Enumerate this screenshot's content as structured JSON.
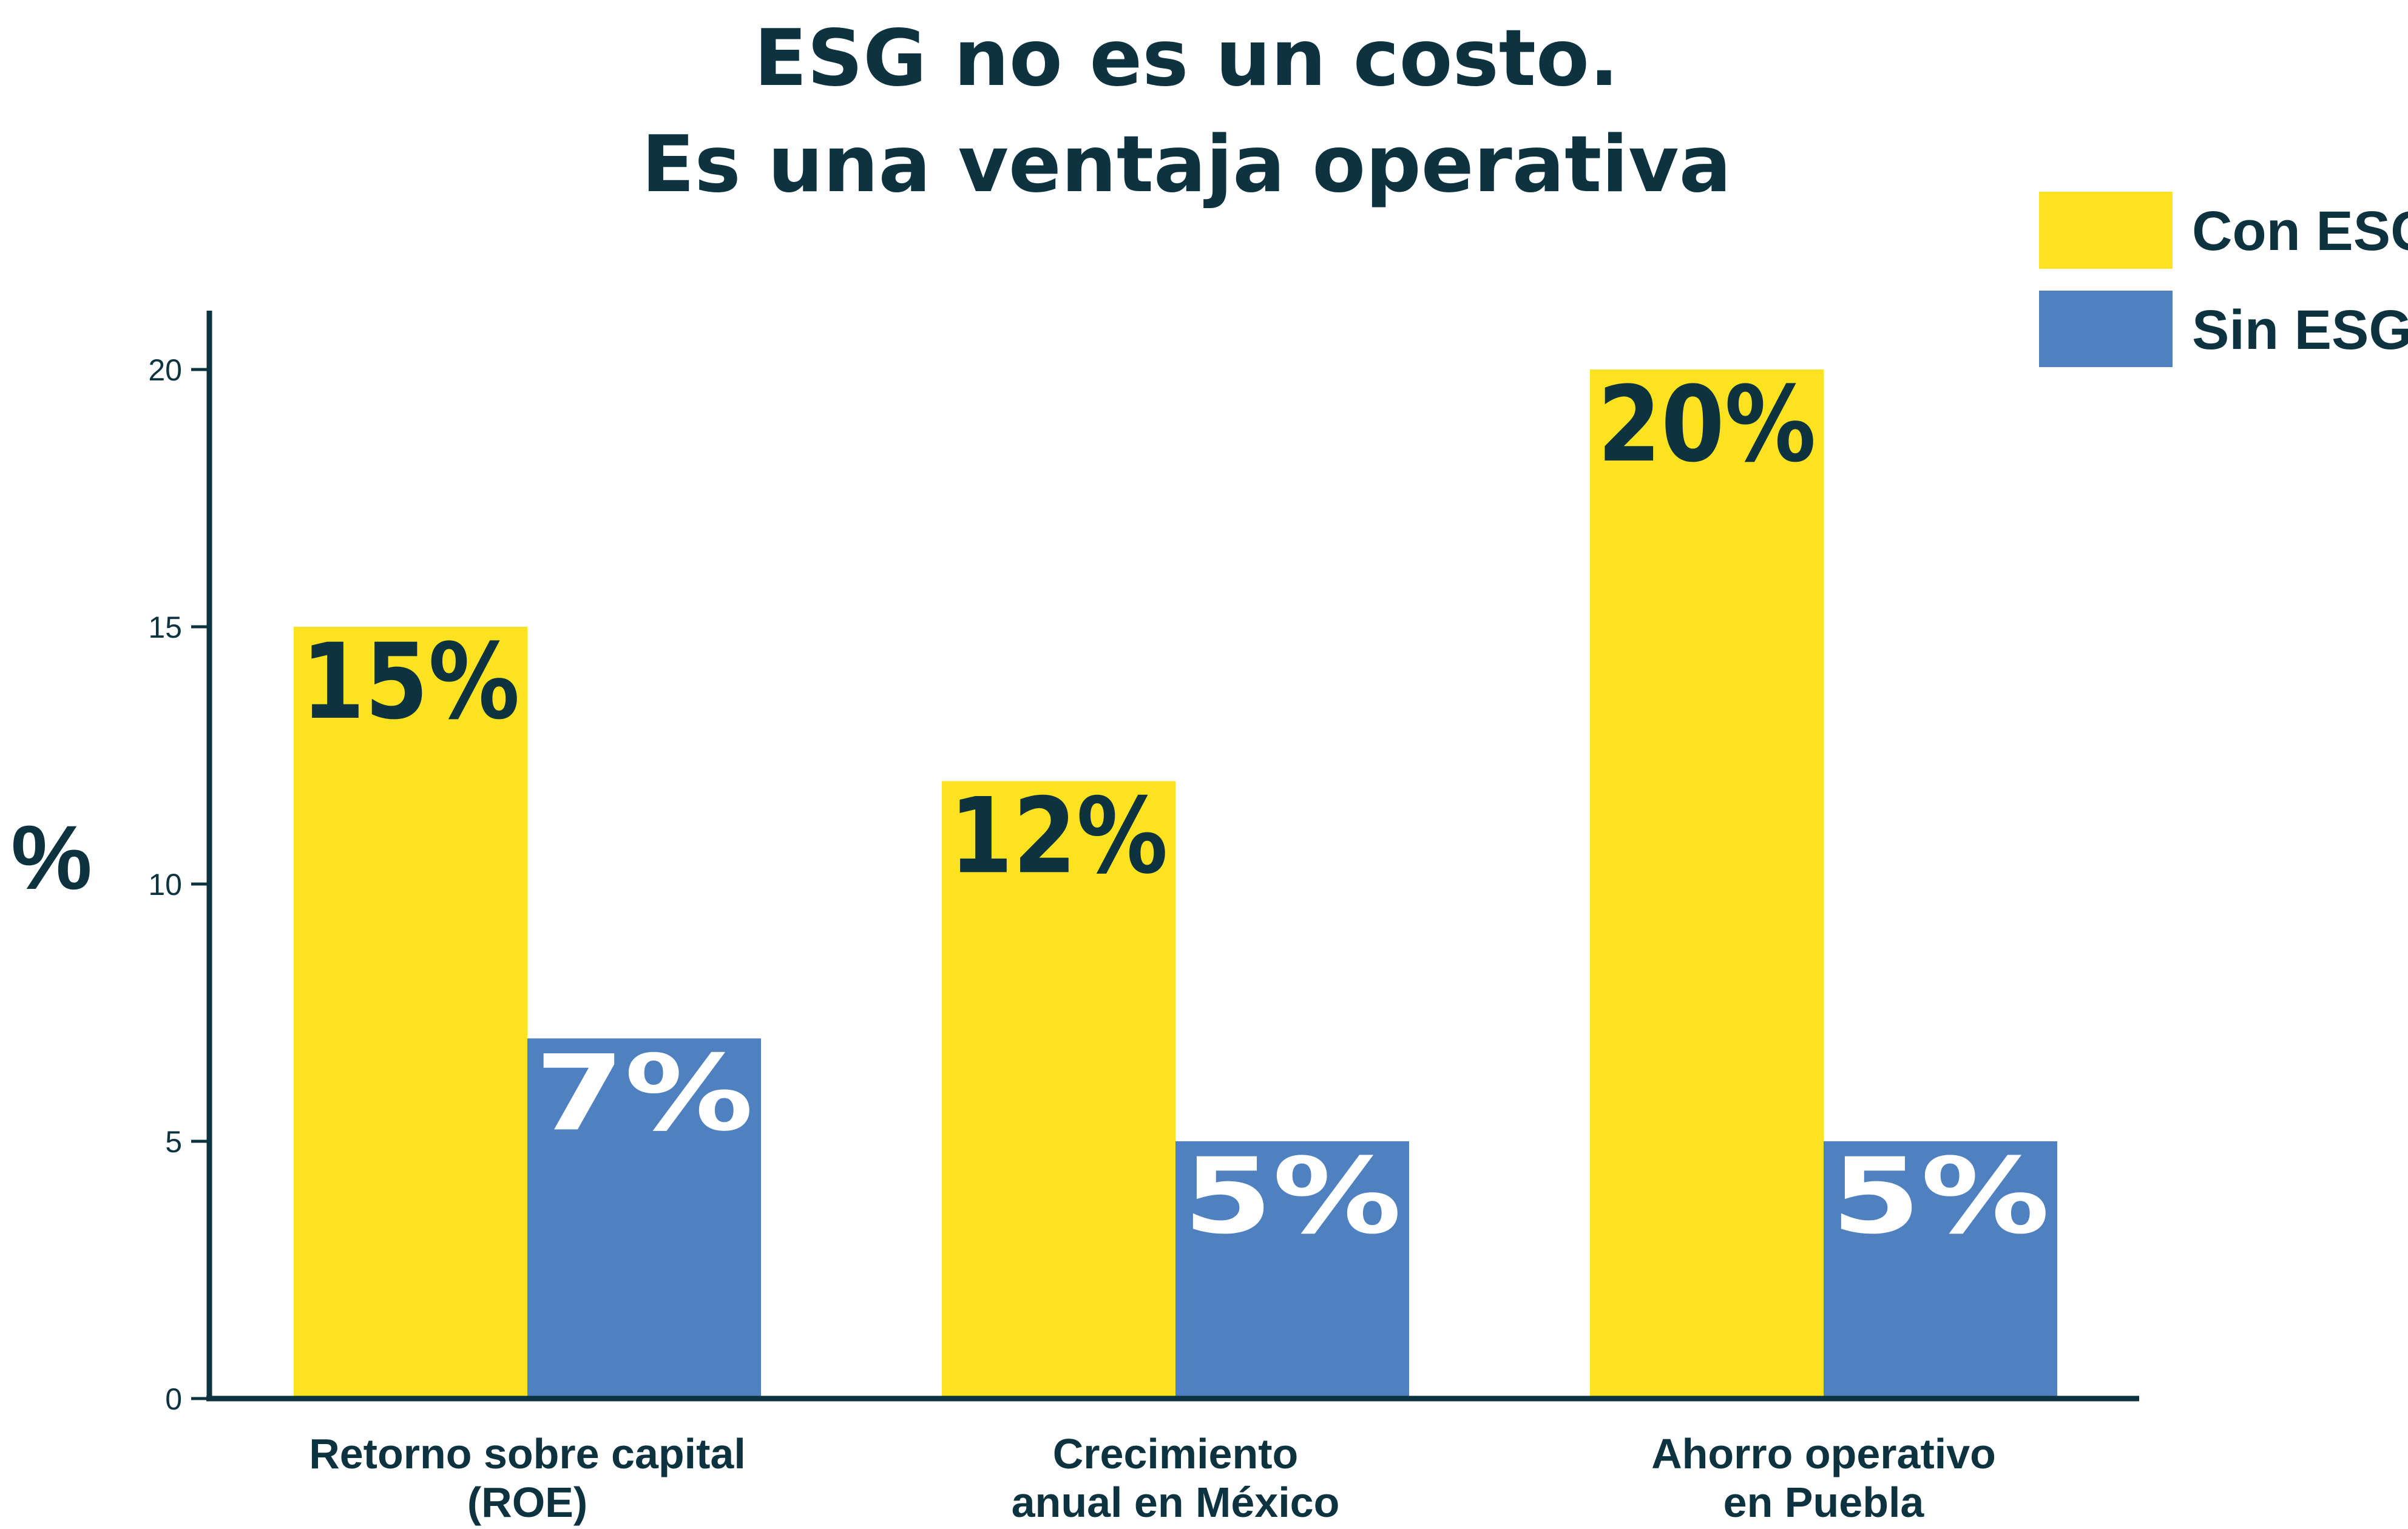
{
  "colors": {
    "text": "#0e3340",
    "axis": "#0e3340",
    "con_esg": "#fde31f",
    "sin_esg": "#4f80c0",
    "label_on_yellow": "#0e3340",
    "label_on_blue": "#ffffff"
  },
  "chart_data": {
    "type": "bar",
    "title": [
      "ESG no es un costo.",
      "Es una ventaja operativa"
    ],
    "ylabel": "%",
    "ylim": [
      0,
      21
    ],
    "yticks": [
      0,
      5,
      10,
      15,
      20
    ],
    "ytick_labels": [
      "0",
      "5",
      "10",
      "15",
      "20"
    ],
    "categories": [
      [
        "Retorno sobre capital",
        "(ROE)"
      ],
      [
        "Crecimiento",
        "anual en México"
      ],
      [
        "Ahorro operativo",
        "en Puebla"
      ]
    ],
    "series": [
      {
        "name": "Con ESG",
        "values": [
          15,
          12,
          20
        ],
        "data_labels": [
          "15%",
          "12%",
          "20%"
        ]
      },
      {
        "name": "Sin ESG",
        "values": [
          7,
          5,
          5
        ],
        "data_labels": [
          "7%",
          "5%",
          "5%"
        ]
      }
    ],
    "legend": [
      "Con ESG",
      "Sin ESG"
    ],
    "legend_position": "top-right",
    "grid": false
  }
}
